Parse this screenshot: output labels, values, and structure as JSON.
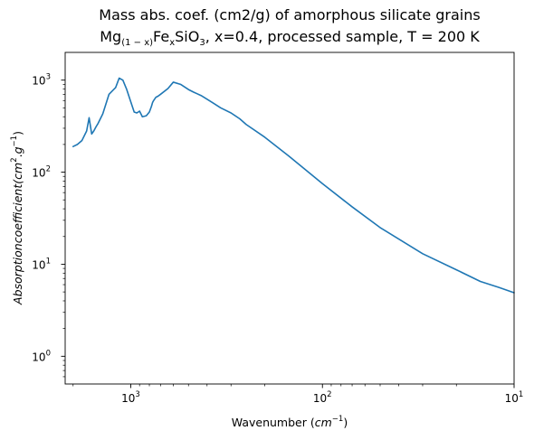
{
  "chart_data": {
    "type": "line",
    "title_line1": "Mass abs. coef. (cm2/g) of amorphous silicate grains",
    "title_line2": {
      "pre": "Mg",
      "sub1": "(1 − x)",
      "mid": "Fe",
      "sub2": "x",
      "mid2": "SiO",
      "sub3": "3",
      "post": ", x=0.4, processed sample, T =  200 K"
    },
    "xlabel": {
      "text": "Wavenumber (",
      "unit_base": "cm",
      "unit_exp": "−1",
      "close": ")"
    },
    "ylabel": {
      "text": "Absorptioncoefficient(",
      "u1": "cm",
      "u1_exp": "2",
      "dot": ".",
      "u2": "g",
      "u2_exp": "−1",
      "close": ")"
    },
    "x_scale": "log",
    "y_scale": "log",
    "x_reversed": true,
    "xlim": [
      2200,
      10
    ],
    "ylim": [
      0.5,
      2000
    ],
    "xticks": [
      {
        "value": 1000,
        "base": "10",
        "exp": "3"
      },
      {
        "value": 100,
        "base": "10",
        "exp": "2"
      },
      {
        "value": 10,
        "base": "10",
        "exp": "1"
      }
    ],
    "yticks": [
      {
        "value": 1,
        "base": "10",
        "exp": "0"
      },
      {
        "value": 10,
        "base": "10",
        "exp": "1"
      },
      {
        "value": 100,
        "base": "10",
        "exp": "2"
      },
      {
        "value": 1000,
        "base": "10",
        "exp": "3"
      }
    ],
    "line_color": "#1f77b4",
    "grid": false,
    "series": [
      {
        "x": [
          2000,
          1900,
          1800,
          1700,
          1650,
          1600,
          1560,
          1520,
          1480,
          1400,
          1300,
          1200,
          1150,
          1100,
          1050,
          1000,
          960,
          930,
          900,
          870,
          830,
          800,
          780,
          770,
          760,
          740,
          720,
          700,
          640,
          600,
          550,
          500,
          470,
          450,
          430,
          400,
          370,
          340,
          300,
          270,
          250,
          200,
          150,
          100,
          70,
          50,
          30,
          20,
          15,
          12,
          10
        ],
        "y": [
          190,
          200,
          220,
          280,
          390,
          260,
          280,
          310,
          340,
          430,
          700,
          830,
          1050,
          1000,
          790,
          580,
          450,
          440,
          460,
          400,
          410,
          450,
          520,
          570,
          600,
          650,
          670,
          700,
          810,
          950,
          900,
          790,
          740,
          710,
          680,
          620,
          560,
          500,
          440,
          380,
          330,
          240,
          150,
          75,
          42,
          25,
          13,
          8.7,
          6.5,
          5.6,
          4.9
        ]
      }
    ]
  }
}
